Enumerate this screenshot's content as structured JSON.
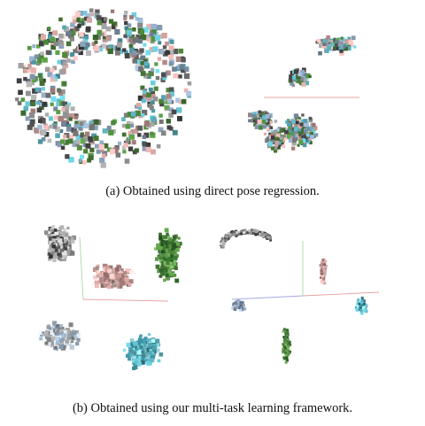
{
  "figure": {
    "caption_a": "(a) Obtained using direct pose regression.",
    "caption_b": "(b) Obtained using our multi-task learning framework."
  },
  "palette": {
    "green": "#4f8a3c",
    "pink": "#d8a7a4",
    "gray": "#9a9a9a",
    "dark_gray": "#4a4a4a",
    "teal": "#5fb6c4",
    "slate_blue": "#8da4bd",
    "axis_red": "#e8a0a0",
    "axis_green": "#a8d8a8",
    "axis_blue": "#a8a8e8"
  }
}
